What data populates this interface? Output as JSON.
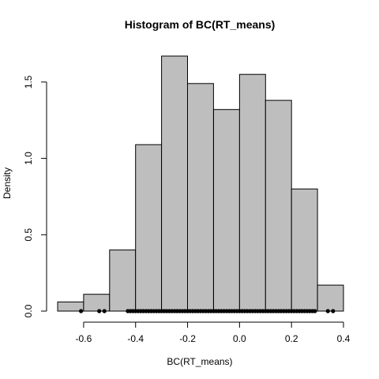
{
  "chart_data": {
    "type": "bar",
    "title": "Histogram of BC(RT_means)",
    "xlabel": "BC(RT_means)",
    "ylabel": "Density",
    "xlim": [
      -0.7,
      0.4
    ],
    "ylim": [
      0,
      1.67
    ],
    "grid": false,
    "x_ticks": [
      -0.6,
      -0.4,
      -0.2,
      0.0,
      0.2,
      0.4
    ],
    "x_tick_labels": [
      "-0.6",
      "-0.4",
      "-0.2",
      "0.0",
      "0.2",
      "0.4"
    ],
    "y_ticks": [
      0.0,
      0.5,
      1.0,
      1.5
    ],
    "y_tick_labels": [
      "0.0",
      "0.5",
      "1.0",
      "1.5"
    ],
    "bins": [
      {
        "start": -0.7,
        "end": -0.6,
        "density": 0.06
      },
      {
        "start": -0.6,
        "end": -0.5,
        "density": 0.11
      },
      {
        "start": -0.5,
        "end": -0.4,
        "density": 0.4
      },
      {
        "start": -0.4,
        "end": -0.3,
        "density": 1.09
      },
      {
        "start": -0.3,
        "end": -0.2,
        "density": 1.67
      },
      {
        "start": -0.2,
        "end": -0.1,
        "density": 1.49
      },
      {
        "start": -0.1,
        "end": 0.0,
        "density": 1.32
      },
      {
        "start": 0.0,
        "end": 0.1,
        "density": 1.55
      },
      {
        "start": 0.1,
        "end": 0.2,
        "density": 1.38
      },
      {
        "start": 0.2,
        "end": 0.3,
        "density": 0.8
      },
      {
        "start": 0.3,
        "end": 0.4,
        "density": 0.17
      }
    ],
    "rug": [
      -0.61,
      -0.54,
      -0.52,
      -0.43,
      -0.42,
      -0.41,
      -0.4,
      -0.39,
      -0.38,
      -0.37,
      -0.36,
      -0.35,
      -0.34,
      -0.33,
      -0.32,
      -0.31,
      -0.3,
      -0.29,
      -0.28,
      -0.27,
      -0.26,
      -0.25,
      -0.24,
      -0.23,
      -0.22,
      -0.21,
      -0.2,
      -0.19,
      -0.18,
      -0.17,
      -0.16,
      -0.15,
      -0.14,
      -0.13,
      -0.12,
      -0.11,
      -0.1,
      -0.09,
      -0.08,
      -0.07,
      -0.06,
      -0.05,
      -0.04,
      -0.03,
      -0.02,
      -0.01,
      0.0,
      0.01,
      0.02,
      0.03,
      0.04,
      0.05,
      0.06,
      0.07,
      0.08,
      0.09,
      0.1,
      0.11,
      0.12,
      0.13,
      0.14,
      0.15,
      0.16,
      0.17,
      0.18,
      0.19,
      0.2,
      0.21,
      0.22,
      0.23,
      0.24,
      0.25,
      0.26,
      0.27,
      0.28,
      0.29,
      0.34,
      0.36
    ]
  }
}
